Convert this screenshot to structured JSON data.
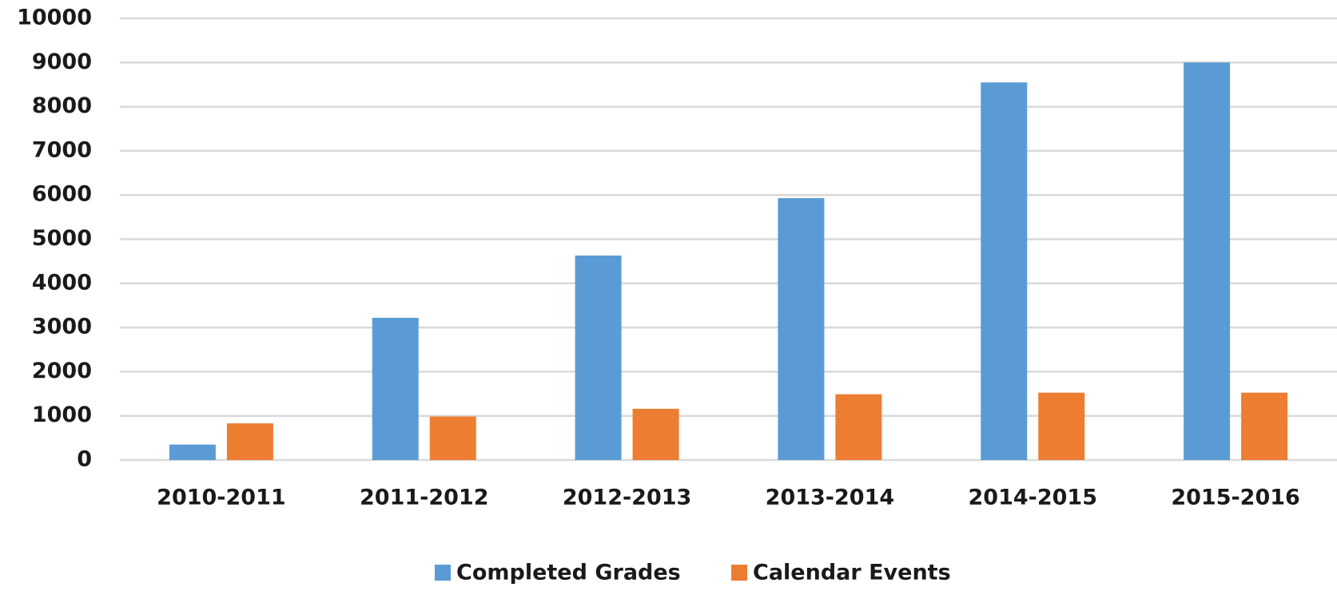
{
  "chart_data": {
    "type": "bar",
    "categories": [
      "2010-2011",
      "2011-2012",
      "2012-2013",
      "2013-2014",
      "2014-2015",
      "2015-2016"
    ],
    "series": [
      {
        "name": "Completed Grades",
        "color": "#5b9bd5",
        "values": [
          350,
          3220,
          4630,
          5930,
          8550,
          9000
        ]
      },
      {
        "name": "Calendar Events",
        "color": "#ed7d31",
        "values": [
          830,
          985,
          1160,
          1490,
          1525,
          1525
        ]
      }
    ],
    "ylim": [
      0,
      10000
    ],
    "yticks": [
      0,
      1000,
      2000,
      3000,
      4000,
      5000,
      6000,
      7000,
      8000,
      9000,
      10000
    ],
    "grid": true,
    "legend": "bottom"
  }
}
